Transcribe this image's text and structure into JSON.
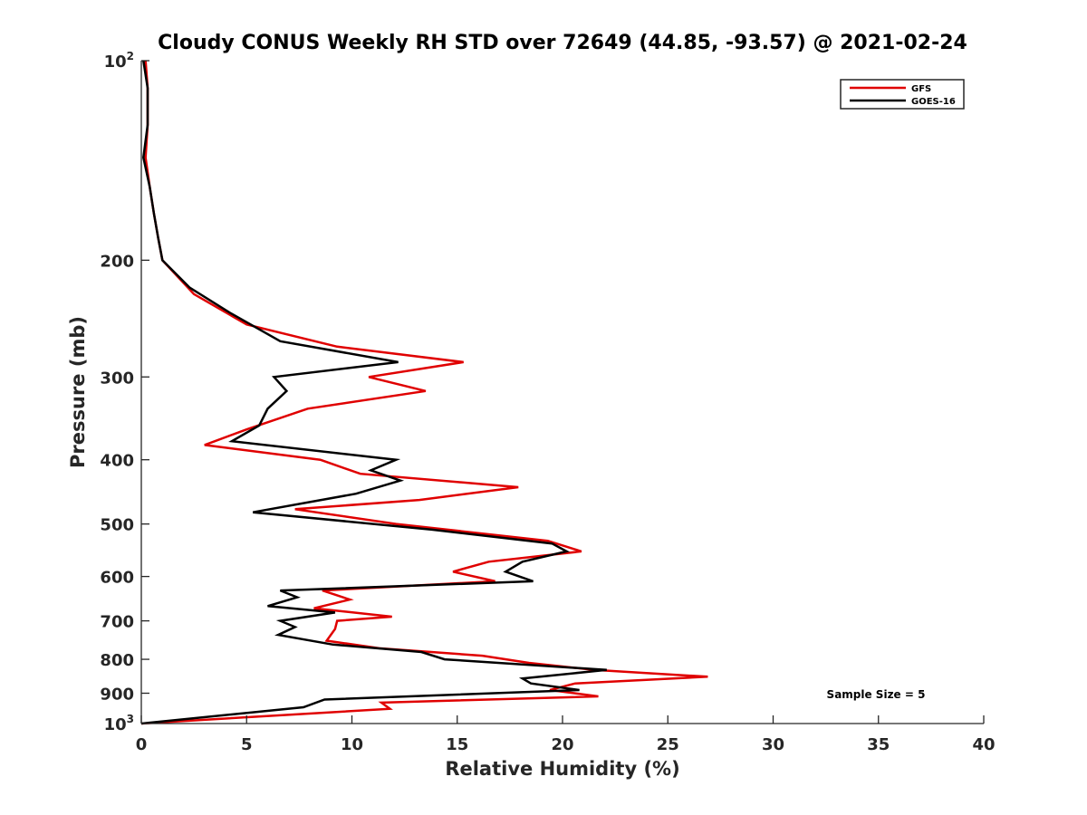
{
  "chart_data": {
    "type": "line",
    "title": "Cloudy CONUS Weekly RH STD over 72649 (44.85, -93.57) @ 2021-02-24",
    "xlabel": "Relative Humidity (%)",
    "ylabel": "Pressure (mb)",
    "xlim": [
      0,
      40
    ],
    "ylim": [
      100,
      1000
    ],
    "y_scale": "log",
    "y_reversed": true,
    "x_ticks": [
      "0",
      "5",
      "10",
      "15",
      "20",
      "25",
      "30",
      "35",
      "40"
    ],
    "y_ticks": [
      {
        "value": 100,
        "base": "10",
        "exp": "2"
      },
      {
        "value": 200,
        "label": "200"
      },
      {
        "value": 300,
        "label": "300"
      },
      {
        "value": 400,
        "label": "400"
      },
      {
        "value": 500,
        "label": "500"
      },
      {
        "value": 600,
        "label": "600"
      },
      {
        "value": 700,
        "label": "700"
      },
      {
        "value": 800,
        "label": "800"
      },
      {
        "value": 900,
        "label": "900"
      },
      {
        "value": 1000,
        "base": "10",
        "exp": "3"
      }
    ],
    "grid": false,
    "legend_position": "top-right",
    "annotation": "Sample Size = 5",
    "series": [
      {
        "name": "GFS",
        "color": "#e00000",
        "points": [
          [
            0.2,
            100
          ],
          [
            0.3,
            110
          ],
          [
            0.3,
            125
          ],
          [
            0.2,
            140
          ],
          [
            0.4,
            155
          ],
          [
            0.6,
            170
          ],
          [
            0.8,
            185
          ],
          [
            1.0,
            200
          ],
          [
            2.5,
            225
          ],
          [
            5.0,
            250
          ],
          [
            9.3,
            270
          ],
          [
            15.3,
            285
          ],
          [
            10.8,
            300
          ],
          [
            13.5,
            315
          ],
          [
            7.9,
            335
          ],
          [
            5.0,
            360
          ],
          [
            3.0,
            380
          ],
          [
            8.5,
            400
          ],
          [
            10.4,
            420
          ],
          [
            17.9,
            440
          ],
          [
            13.2,
            460
          ],
          [
            7.3,
            475
          ],
          [
            12.1,
            500
          ],
          [
            19.3,
            530
          ],
          [
            20.9,
            550
          ],
          [
            16.5,
            570
          ],
          [
            14.8,
            590
          ],
          [
            16.8,
            610
          ],
          [
            8.6,
            630
          ],
          [
            9.9,
            650
          ],
          [
            8.2,
            670
          ],
          [
            11.9,
            690
          ],
          [
            9.3,
            700
          ],
          [
            9.2,
            720
          ],
          [
            8.8,
            750
          ],
          [
            11.3,
            770
          ],
          [
            16.2,
            790
          ],
          [
            18.4,
            810
          ],
          [
            21.5,
            830
          ],
          [
            26.9,
            850
          ],
          [
            20.6,
            870
          ],
          [
            19.4,
            890
          ],
          [
            21.7,
            910
          ],
          [
            11.4,
            930
          ],
          [
            11.8,
            950
          ],
          [
            0.0,
            1000
          ]
        ]
      },
      {
        "name": "GOES-16",
        "color": "#000000",
        "points": [
          [
            0.1,
            100
          ],
          [
            0.3,
            110
          ],
          [
            0.3,
            125
          ],
          [
            0.1,
            140
          ],
          [
            0.4,
            155
          ],
          [
            0.6,
            170
          ],
          [
            0.8,
            185
          ],
          [
            1.0,
            200
          ],
          [
            2.3,
            220
          ],
          [
            4.2,
            240
          ],
          [
            6.6,
            265
          ],
          [
            12.2,
            285
          ],
          [
            6.3,
            300
          ],
          [
            6.9,
            315
          ],
          [
            6.0,
            335
          ],
          [
            5.6,
            355
          ],
          [
            4.3,
            375
          ],
          [
            12.1,
            400
          ],
          [
            10.9,
            415
          ],
          [
            12.3,
            430
          ],
          [
            10.2,
            450
          ],
          [
            5.3,
            480
          ],
          [
            13.8,
            510
          ],
          [
            19.5,
            535
          ],
          [
            20.2,
            550
          ],
          [
            18.1,
            570
          ],
          [
            17.3,
            590
          ],
          [
            18.6,
            610
          ],
          [
            6.6,
            630
          ],
          [
            7.4,
            645
          ],
          [
            6.0,
            665
          ],
          [
            9.2,
            680
          ],
          [
            6.6,
            700
          ],
          [
            7.3,
            715
          ],
          [
            6.5,
            735
          ],
          [
            9.1,
            760
          ],
          [
            13.3,
            780
          ],
          [
            14.4,
            800
          ],
          [
            22.1,
            830
          ],
          [
            18.1,
            855
          ],
          [
            18.5,
            870
          ],
          [
            20.8,
            890
          ],
          [
            8.7,
            920
          ],
          [
            7.7,
            945
          ],
          [
            0.0,
            1000
          ]
        ]
      }
    ]
  }
}
